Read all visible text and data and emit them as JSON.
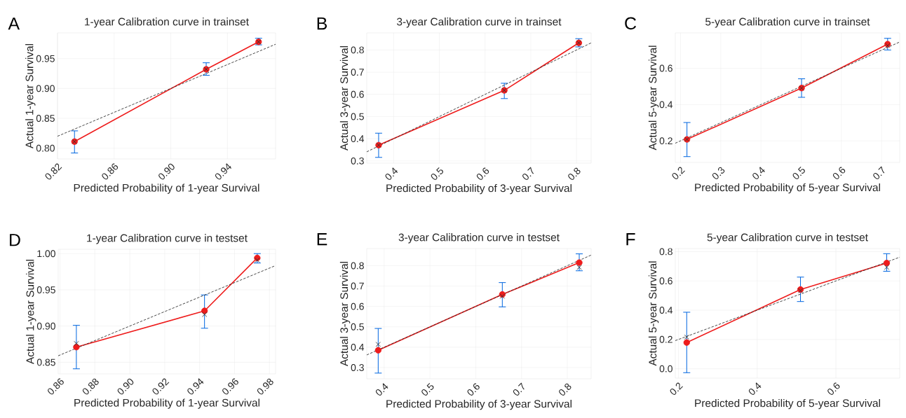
{
  "chart_data": [
    {
      "type": "line",
      "title": "1-year Calibration curve in trainset",
      "xlabel": "Predicted Probability of 1-year Survival",
      "ylabel": "Actual 1-year Survival",
      "annotations": [
        "A"
      ],
      "xlim": [
        0.82,
        0.974
      ],
      "ylim": [
        0.782,
        0.993
      ],
      "xticks": [
        0.82,
        0.86,
        {
          "value": 0.9,
          "label": "0.90"
        },
        0.94
      ],
      "yticks": [
        {
          "value": 0.8,
          "label": "0.80"
        },
        0.85,
        {
          "value": 0.9,
          "label": "0.90"
        },
        0.95
      ],
      "grid": true,
      "series": [
        {
          "x": [
            0.832,
            0.925,
            0.962
          ],
          "values": [
            0.811,
            0.932,
            0.978
          ],
          "color": "#ee1c1c",
          "marker": "circle"
        },
        {
          "type": "scatter",
          "x": [
            0.832,
            0.925,
            0.962
          ],
          "values": [
            0.811,
            0.932,
            0.978
          ],
          "color": "#333333",
          "marker": "cross",
          "errors": [
            [
              0.792,
              0.829
            ],
            [
              0.922,
              0.943
            ],
            [
              0.973,
              0.984
            ]
          ]
        },
        {
          "x": [
            0.82,
            0.974
          ],
          "values": [
            0.82,
            0.974
          ],
          "color": "#333333",
          "line_style": "dashed"
        }
      ]
    },
    {
      "type": "line",
      "title": "3-year Calibration curve in trainset",
      "xlabel": "Predicted Probability of 3-year Survival",
      "ylabel": "Actual 3-year Survival",
      "annotations": [
        "B"
      ],
      "xlim": [
        0.341,
        0.832
      ],
      "ylim": [
        0.29,
        0.877
      ],
      "xticks": [
        0.4,
        0.5,
        0.6,
        0.7,
        0.8
      ],
      "yticks": [
        0.3,
        0.4,
        0.5,
        0.6,
        0.7,
        0.8
      ],
      "grid": true,
      "series": [
        {
          "x": [
            0.367,
            0.642,
            0.805
          ],
          "values": [
            0.371,
            0.618,
            0.832
          ],
          "color": "#ee1c1c",
          "marker": "circle"
        },
        {
          "type": "scatter",
          "x": [
            0.367,
            0.642,
            0.805
          ],
          "values": [
            0.371,
            0.618,
            0.832
          ],
          "color": "#333333",
          "marker": "cross",
          "errors": [
            [
              0.316,
              0.425
            ],
            [
              0.581,
              0.65
            ],
            [
              0.814,
              0.851
            ]
          ]
        },
        {
          "x": [
            0.341,
            0.832
          ],
          "values": [
            0.341,
            0.832
          ],
          "color": "#333333",
          "line_style": "dashed"
        }
      ]
    },
    {
      "type": "line",
      "title": "5-year Calibration curve in trainset",
      "xlabel": "Predicted Probability of 5-year Survival",
      "ylabel": "Actual 5-year Survival",
      "annotations": [
        "C"
      ],
      "xlim": [
        0.187,
        0.745
      ],
      "ylim": [
        0.081,
        0.795
      ],
      "xticks": [
        0.2,
        0.3,
        0.4,
        0.5,
        0.6,
        0.7
      ],
      "yticks": [
        0.2,
        0.4,
        0.6
      ],
      "grid": true,
      "series": [
        {
          "x": [
            0.216,
            0.501,
            0.715
          ],
          "values": [
            0.208,
            0.491,
            0.733
          ],
          "color": "#ee1c1c",
          "marker": "circle"
        },
        {
          "type": "scatter",
          "x": [
            0.216,
            0.501,
            0.715
          ],
          "values": [
            0.208,
            0.491,
            0.725
          ],
          "color": "#333333",
          "marker": "cross",
          "errors": [
            [
              0.113,
              0.301
            ],
            [
              0.44,
              0.542
            ],
            [
              0.701,
              0.765
            ]
          ]
        },
        {
          "x": [
            0.187,
            0.745
          ],
          "values": [
            0.187,
            0.745
          ],
          "color": "#333333",
          "line_style": "dashed"
        }
      ]
    },
    {
      "type": "line",
      "title": "1-year Calibration curve in testset",
      "xlabel": "Predicted Probability of 1-year Survival",
      "ylabel": "Actual 1-year Survival",
      "annotations": [
        "D"
      ],
      "xlim": [
        0.859,
        0.9835
      ],
      "ylim": [
        0.834,
        1.006
      ],
      "xticks": [
        0.86,
        0.88,
        {
          "value": 0.9,
          "label": "0.90"
        },
        0.92,
        0.94,
        0.96,
        0.98
      ],
      "yticks": [
        0.85,
        {
          "value": 0.9,
          "label": "0.90"
        },
        0.95,
        {
          "value": 1.0,
          "label": "1.00"
        }
      ],
      "grid": true,
      "series": [
        {
          "x": [
            0.8694,
            0.9428,
            0.973
          ],
          "values": [
            0.871,
            0.921,
            0.994
          ],
          "color": "#ee1c1c",
          "marker": "circle"
        },
        {
          "type": "scatter",
          "x": [
            0.8694,
            0.9428,
            0.973
          ],
          "values": [
            0.876,
            0.916,
            0.991
          ],
          "color": "#333333",
          "marker": "cross",
          "errors": [
            [
              0.841,
              0.901
            ],
            [
              0.897,
              0.943
            ],
            [
              0.987,
              1.0
            ]
          ]
        },
        {
          "x": [
            0.859,
            0.983
          ],
          "values": [
            0.859,
            0.983
          ],
          "color": "#333333",
          "line_style": "dashed"
        }
      ]
    },
    {
      "type": "line",
      "title": "3-year Calibration curve in testset",
      "xlabel": "Predicted Probability of 3-year Survival",
      "ylabel": "Actual 3-year Survival",
      "annotations": [
        "E"
      ],
      "xlim": [
        0.362,
        0.852
      ],
      "ylim": [
        0.245,
        0.884
      ],
      "xticks": [
        0.4,
        0.5,
        0.6,
        0.7,
        0.8
      ],
      "yticks": [
        0.3,
        0.4,
        0.5,
        0.6,
        0.7,
        0.8
      ],
      "grid": true,
      "series": [
        {
          "x": [
            0.387,
            0.658,
            0.826
          ],
          "values": [
            0.385,
            0.659,
            0.815
          ],
          "color": "#ee1c1c",
          "marker": "circle"
        },
        {
          "type": "scatter",
          "x": [
            0.387,
            0.658,
            0.826
          ],
          "values": [
            0.414,
            0.65,
            0.792
          ],
          "color": "#333333",
          "marker": "cross",
          "errors": [
            [
              0.273,
              0.492
            ],
            [
              0.598,
              0.717
            ],
            [
              0.775,
              0.858
            ]
          ]
        },
        {
          "x": [
            0.362,
            0.852
          ],
          "values": [
            0.362,
            0.852
          ],
          "color": "#333333",
          "line_style": "dashed"
        }
      ]
    },
    {
      "type": "line",
      "title": "5-year Calibration curve in testset",
      "xlabel": "Predicted Probability of 5-year Survival",
      "ylabel": "Actual 5-year Survival",
      "annotations": [
        "F"
      ],
      "xlim": [
        0.192,
        0.762
      ],
      "ylim": [
        -0.064,
        0.821
      ],
      "xticks": [
        0.2,
        0.4,
        0.6
      ],
      "yticks": [
        {
          "value": 0,
          "label": "0.0"
        },
        0.2,
        0.4,
        0.6,
        0.8
      ],
      "grid": true,
      "series": [
        {
          "x": [
            0.221,
            0.51,
            0.729
          ],
          "values": [
            0.179,
            0.541,
            0.722
          ],
          "color": "#ee1c1c",
          "marker": "circle"
        },
        {
          "type": "scatter",
          "x": [
            0.221,
            0.51,
            0.729
          ],
          "values": [
            0.216,
            0.533,
            0.693
          ],
          "color": "#333333",
          "marker": "cross",
          "errors": [
            [
              -0.027,
              0.386
            ],
            [
              0.459,
              0.626
            ],
            [
              0.666,
              0.786
            ]
          ]
        },
        {
          "x": [
            0.192,
            0.762
          ],
          "values": [
            0.192,
            0.762
          ],
          "color": "#333333",
          "line_style": "dashed"
        }
      ]
    }
  ]
}
